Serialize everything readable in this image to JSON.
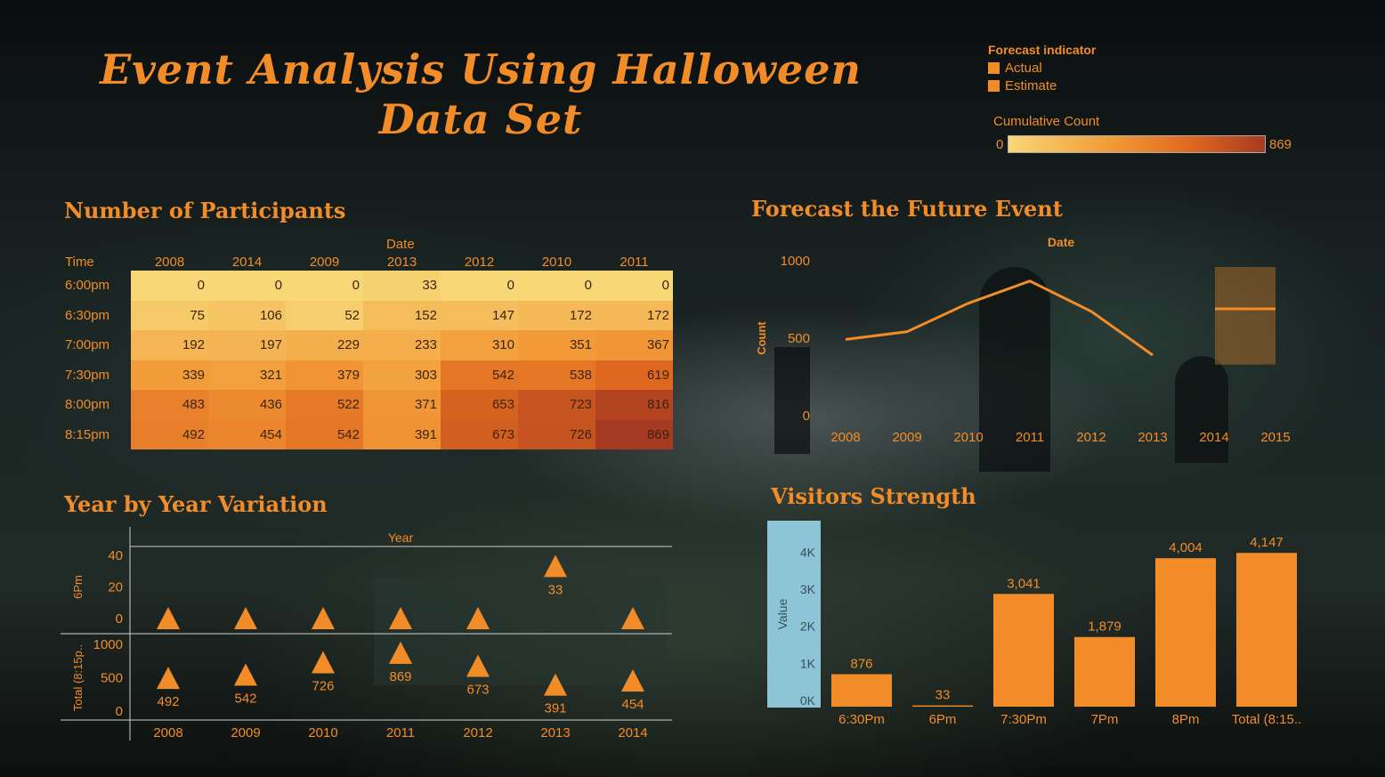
{
  "title": "Event Analysis Using Halloween Data Set",
  "legend": {
    "title": "Forecast indicator",
    "items": [
      "Actual",
      "Estimate"
    ],
    "cumulative_title": "Cumulative Count",
    "cumulative_min": "0",
    "cumulative_max": "869"
  },
  "colors": {
    "accent": "#f28c28",
    "low": "#f8d776",
    "high": "#a73a22",
    "panel": "#8ec5d6"
  },
  "sections": {
    "participants": "Number of Participants",
    "forecast": "Forecast the Future Event",
    "variation": "Year by Year Variation",
    "visitors": "Visitors Strength"
  },
  "chart_data": [
    {
      "type": "heatmap",
      "title": "Number of Participants",
      "column_group_label": "Date",
      "row_header": "Time",
      "columns": [
        "2008",
        "2014",
        "2009",
        "2013",
        "2012",
        "2010",
        "2011"
      ],
      "rows": [
        "6:00pm",
        "6:30pm",
        "7:00pm",
        "7:30pm",
        "8:00pm",
        "8:15pm"
      ],
      "values": [
        [
          0,
          0,
          0,
          33,
          0,
          0,
          0
        ],
        [
          75,
          106,
          52,
          152,
          147,
          172,
          172
        ],
        [
          192,
          197,
          229,
          233,
          310,
          351,
          367
        ],
        [
          339,
          321,
          379,
          303,
          542,
          538,
          619
        ],
        [
          483,
          436,
          522,
          371,
          653,
          723,
          816
        ],
        [
          492,
          454,
          542,
          391,
          673,
          726,
          869
        ]
      ],
      "color_range": [
        0,
        869
      ]
    },
    {
      "type": "line",
      "title": "Forecast the Future Event",
      "xlabel": "Date",
      "ylabel": "Count",
      "x": [
        "2008",
        "2009",
        "2010",
        "2011",
        "2012",
        "2013",
        "2014",
        "2015"
      ],
      "actual": [
        492,
        542,
        726,
        869,
        673,
        391
      ],
      "estimate": {
        "x": [
          "2014",
          "2015"
        ],
        "value": 690,
        "band": [
          330,
          960
        ]
      },
      "yticks": [
        "0",
        "500",
        "1000"
      ],
      "ylim": [
        0,
        1000
      ]
    },
    {
      "type": "scatter",
      "title": "Year by Year Variation",
      "xlabel": "Year",
      "x": [
        "2008",
        "2009",
        "2010",
        "2011",
        "2012",
        "2013",
        "2014"
      ],
      "panels": [
        {
          "label": "6Pm",
          "yticks": [
            "0",
            "20",
            "40"
          ],
          "ylim": [
            0,
            40
          ],
          "values": [
            0,
            0,
            0,
            0,
            0,
            33,
            0
          ]
        },
        {
          "label": "Total (8:15p..",
          "yticks": [
            "0",
            "500",
            "1000"
          ],
          "ylim": [
            0,
            1000
          ],
          "values": [
            492,
            542,
            726,
            869,
            673,
            391,
            454
          ]
        }
      ],
      "data_labels": [
        [
          null,
          null,
          null,
          null,
          null,
          "33",
          null
        ],
        [
          "492",
          "542",
          "726",
          "869",
          "673",
          "391",
          "454"
        ]
      ]
    },
    {
      "type": "bar",
      "title": "Visitors Strength",
      "ylabel": "Value",
      "categories": [
        "6:30Pm",
        "6Pm",
        "7:30Pm",
        "7Pm",
        "8Pm",
        "Total (8:15.."
      ],
      "values": [
        876,
        33,
        3041,
        1879,
        4004,
        4147
      ],
      "labels": [
        "876",
        "33",
        "3,041",
        "1,879",
        "4,004",
        "4,147"
      ],
      "yticks": [
        "0K",
        "1K",
        "2K",
        "3K",
        "4K"
      ],
      "ylim": [
        0,
        4800
      ]
    }
  ]
}
